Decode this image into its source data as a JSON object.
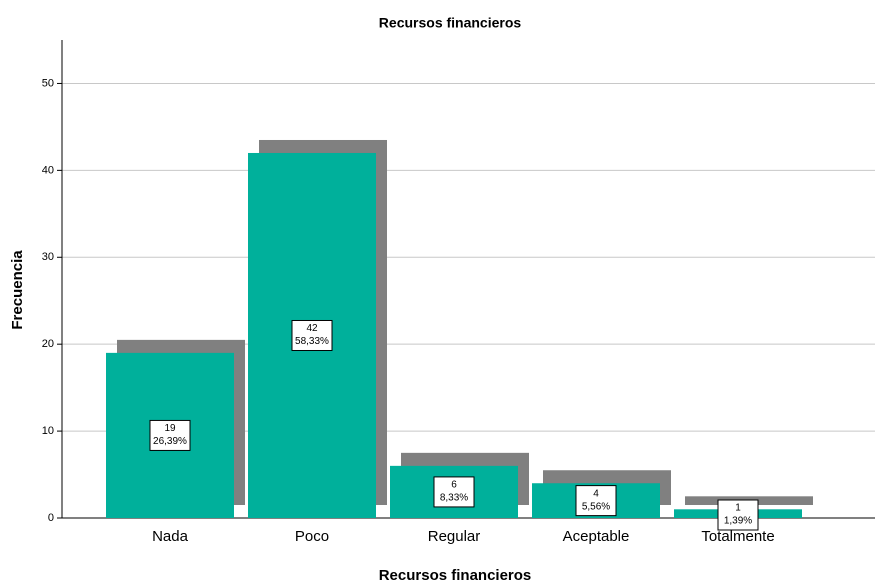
{
  "chart_data": {
    "type": "bar",
    "title": "Recursos financieros",
    "x_label": "Recursos financieros",
    "y_label": "Frecuencia",
    "categories": [
      "Nada",
      "Poco",
      "Regular",
      "Aceptable",
      "Totalmente"
    ],
    "values": [
      19,
      42,
      6,
      4,
      1
    ],
    "percentages": {
      "values": [
        26.39,
        58.33,
        8.33,
        5.56,
        1.39
      ],
      "value_labels": [
        "26,39%",
        "58,33%",
        "8,33%",
        "5,56%",
        "1,39%"
      ]
    },
    "color": "#00b09b",
    "ylim": [
      0,
      55
    ],
    "yticks": [
      0,
      10,
      20,
      30,
      40,
      50
    ],
    "grid": true
  }
}
